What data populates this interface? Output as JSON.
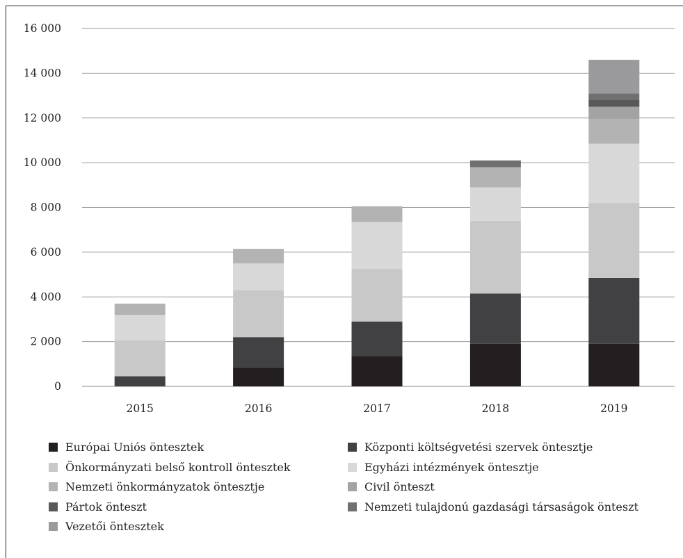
{
  "chart_data": {
    "type": "bar",
    "stacked": true,
    "categories": [
      "2015",
      "2016",
      "2017",
      "2018",
      "2019"
    ],
    "ylim": [
      0,
      16000
    ],
    "yticks": [
      0,
      2000,
      4000,
      6000,
      8000,
      10000,
      12000,
      14000,
      16000
    ],
    "ytick_labels": [
      "0",
      "2 000",
      "4 000",
      "6 000",
      "8 000",
      "10 000",
      "12 000",
      "14 000",
      "16 000"
    ],
    "grid": true,
    "legend_position": "bottom",
    "series": [
      {
        "name": "Európai Uniós öntesztek",
        "color": "#231f20",
        "values": [
          0,
          850,
          1350,
          1900,
          1900
        ]
      },
      {
        "name": "Központi költségvetési szervek öntesztje",
        "color": "#414042",
        "values": [
          450,
          1350,
          1550,
          2250,
          2950
        ]
      },
      {
        "name": "Önkormányzati belső kontroll öntesztek",
        "color": "#c8c8c8",
        "values": [
          1600,
          2100,
          2350,
          3250,
          3350
        ]
      },
      {
        "name": "Egyházi intézmények öntesztje",
        "color": "#d8d8d8",
        "values": [
          1150,
          1200,
          2100,
          1500,
          2650
        ]
      },
      {
        "name": "Nemzeti önkormányzatok öntesztje",
        "color": "#b3b3b3",
        "values": [
          500,
          650,
          700,
          900,
          1100
        ]
      },
      {
        "name": "Civil önteszt",
        "color": "#a3a3a3",
        "values": [
          0,
          0,
          0,
          0,
          550
        ]
      },
      {
        "name": "Pártok önteszt",
        "color": "#58585a",
        "values": [
          0,
          0,
          0,
          0,
          300
        ]
      },
      {
        "name": "Nemzeti tulajdonú gazdasági társaságok önteszt",
        "color": "#707070",
        "values": [
          0,
          0,
          0,
          300,
          300
        ]
      },
      {
        "name": "Vezetői öntesztek",
        "color": "#9a9a9c",
        "values": [
          0,
          0,
          0,
          0,
          1500
        ]
      }
    ]
  }
}
